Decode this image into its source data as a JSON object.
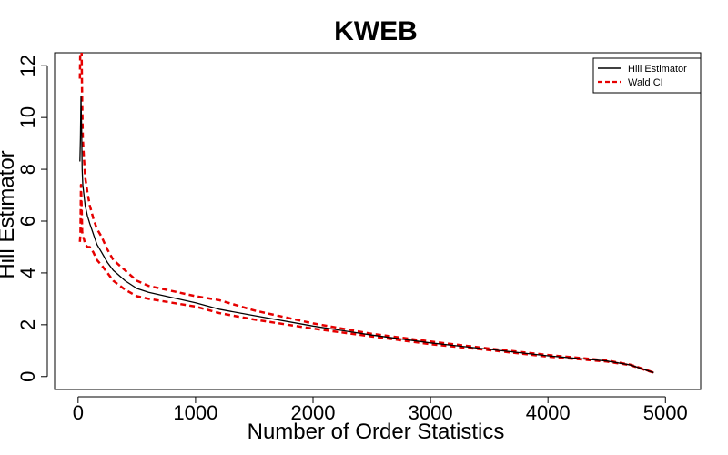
{
  "chart_data": {
    "type": "line",
    "title": "KWEB",
    "xlabel": "Number of Order Statistics",
    "ylabel": "Hill Estimator",
    "xlim": [
      -200,
      5300
    ],
    "ylim": [
      -0.5,
      12.5
    ],
    "xticks": [
      0,
      1000,
      2000,
      3000,
      4000,
      5000
    ],
    "xtick_labels": [
      "0",
      "1000",
      "2000",
      "3000",
      "4000",
      "5000"
    ],
    "yticks": [
      0,
      2,
      4,
      6,
      8,
      10,
      12
    ],
    "ytick_labels": [
      "0",
      "2",
      "4",
      "6",
      "8",
      "10",
      "12"
    ],
    "grid": false,
    "legend_position": "top-right",
    "legend": [
      {
        "label": "Hill Estimator",
        "color": "#000000",
        "style": "solid"
      },
      {
        "label": "Wald CI",
        "color": "#e60000",
        "style": "dashed"
      }
    ],
    "series": [
      {
        "name": "Hill Estimator",
        "color": "#000000",
        "style": "solid",
        "x": [
          15,
          20,
          25,
          30,
          35,
          40,
          50,
          60,
          80,
          100,
          130,
          160,
          200,
          250,
          300,
          400,
          500,
          600,
          800,
          1000,
          1200,
          1500,
          2000,
          2500,
          3000,
          3500,
          4000,
          4500,
          4700,
          4800,
          4900
        ],
        "y": [
          8.3,
          9.2,
          10.8,
          9.6,
          8.0,
          7.4,
          7.0,
          6.6,
          6.2,
          5.9,
          5.5,
          5.1,
          4.8,
          4.4,
          4.1,
          3.7,
          3.4,
          3.25,
          3.05,
          2.85,
          2.6,
          2.35,
          1.95,
          1.6,
          1.3,
          1.05,
          0.8,
          0.6,
          0.45,
          0.3,
          0.15
        ]
      },
      {
        "name": "Wald CI",
        "color": "#e60000",
        "style": "dashed",
        "x": [
          15,
          20,
          25,
          30,
          35,
          40,
          50,
          60,
          80,
          100,
          130,
          160,
          200,
          250,
          300,
          400,
          500,
          600,
          800,
          1000,
          1200,
          1500,
          2000,
          2500,
          3000,
          3500,
          4000,
          4500,
          4700,
          4800,
          4900
        ],
        "y": [
          11.5,
          13.0,
          14.5,
          12.5,
          10.6,
          9.2,
          8.4,
          7.7,
          7.1,
          6.6,
          6.1,
          5.7,
          5.4,
          4.9,
          4.5,
          4.1,
          3.7,
          3.5,
          3.3,
          3.1,
          2.95,
          2.55,
          2.05,
          1.65,
          1.35,
          1.08,
          0.83,
          0.62,
          0.46,
          0.31,
          0.15
        ]
      },
      {
        "name": "Wald CI",
        "color": "#e60000",
        "style": "dashed",
        "x": [
          15,
          20,
          25,
          30,
          35,
          40,
          50,
          60,
          80,
          100,
          130,
          160,
          200,
          250,
          300,
          400,
          500,
          600,
          800,
          1000,
          1200,
          1500,
          2000,
          2500,
          3000,
          3500,
          4000,
          4500,
          4700,
          4800,
          4900
        ],
        "y": [
          5.2,
          5.5,
          7.4,
          6.6,
          5.6,
          5.4,
          5.3,
          5.1,
          5.0,
          5.0,
          4.8,
          4.5,
          4.3,
          4.0,
          3.7,
          3.35,
          3.1,
          3.0,
          2.85,
          2.7,
          2.45,
          2.2,
          1.85,
          1.55,
          1.25,
          1.02,
          0.77,
          0.58,
          0.44,
          0.29,
          0.15
        ]
      }
    ]
  }
}
